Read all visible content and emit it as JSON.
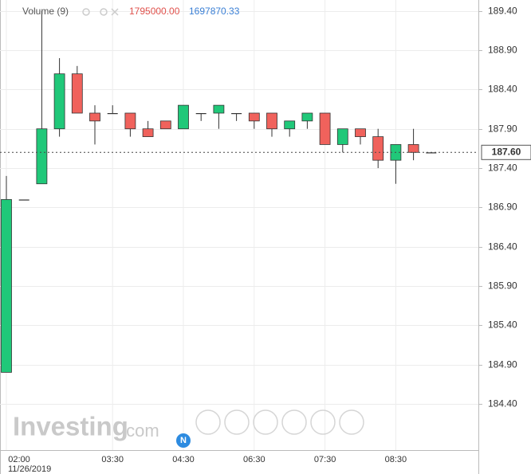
{
  "chart_data": {
    "type": "candlestick",
    "volume_label": "Volume (9)",
    "volume_value_a": "1795000.00",
    "volume_value_b": "1697870.33",
    "watermark": "Investing",
    "watermark_suffix": ".com",
    "event_marker": "N",
    "date_label": "11/26/2019",
    "categories": [
      "02:00",
      null,
      null,
      null,
      null,
      null,
      "03:30",
      null,
      null,
      null,
      "04:30",
      null,
      null,
      null,
      "06:30",
      null,
      null,
      null,
      "07:30",
      null,
      null,
      null,
      "08:30",
      null,
      null
    ],
    "open": [
      184.8,
      187.0,
      187.2,
      187.9,
      188.6,
      188.1,
      188.1,
      188.1,
      187.9,
      188.0,
      187.9,
      188.1,
      188.1,
      188.1,
      188.1,
      188.1,
      187.9,
      188.0,
      188.1,
      187.7,
      187.9,
      187.8,
      187.5,
      187.7,
      187.6
    ],
    "high": [
      187.3,
      187.0,
      189.4,
      188.8,
      188.7,
      188.2,
      188.2,
      188.1,
      188.0,
      188.0,
      188.2,
      188.1,
      188.2,
      188.1,
      188.1,
      188.1,
      188.0,
      188.1,
      188.1,
      187.9,
      187.9,
      187.9,
      187.7,
      187.9,
      187.6
    ],
    "low": [
      184.8,
      187.0,
      187.2,
      187.8,
      188.1,
      187.7,
      188.1,
      187.8,
      187.8,
      187.9,
      187.9,
      188.0,
      187.9,
      188.0,
      187.9,
      187.8,
      187.8,
      187.9,
      187.7,
      187.6,
      187.7,
      187.4,
      187.2,
      187.5,
      187.6
    ],
    "close": [
      187.0,
      187.0,
      187.9,
      188.6,
      188.1,
      188.0,
      188.1,
      187.9,
      187.8,
      187.9,
      188.2,
      188.1,
      188.2,
      188.1,
      188.0,
      187.9,
      188.0,
      188.1,
      187.7,
      187.9,
      187.8,
      187.5,
      187.7,
      187.6,
      187.6
    ],
    "up_color": "#20c879",
    "down_color": "#f0625c",
    "last_price": {
      "value": 187.6,
      "label": "187.60"
    },
    "ylim": [
      183.81,
      189.54
    ],
    "yticks": [
      {
        "value": 184.4,
        "label": "184.40"
      },
      {
        "value": 184.9,
        "label": "184.90"
      },
      {
        "value": 185.4,
        "label": "185.40"
      },
      {
        "value": 185.9,
        "label": "185.90"
      },
      {
        "value": 186.4,
        "label": "186.40"
      },
      {
        "value": 186.9,
        "label": "186.90"
      },
      {
        "value": 187.4,
        "label": "187.40"
      },
      {
        "value": 187.9,
        "label": "187.90"
      },
      {
        "value": 188.4,
        "label": "188.40"
      },
      {
        "value": 188.9,
        "label": "188.90"
      },
      {
        "value": 189.4,
        "label": "189.40"
      }
    ],
    "grid": true
  }
}
